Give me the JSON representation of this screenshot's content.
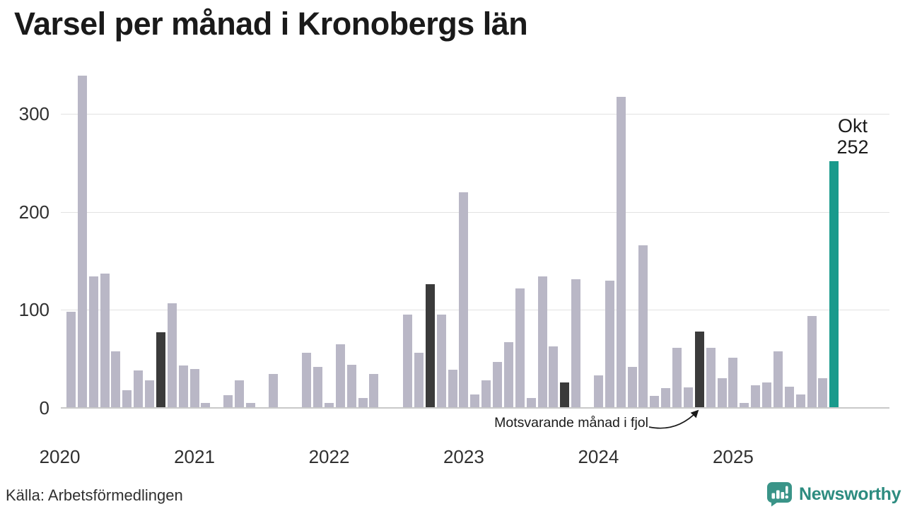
{
  "title": "Varsel per månad i Kronobergs län",
  "source": "Källa: Arbetsförmedlingen",
  "brand": {
    "name": "Newsworthy"
  },
  "annotation": {
    "text": "Motsvarande månad i fjol"
  },
  "colors": {
    "bar": "#b9b7c6",
    "bar_dark": "#3b3b3b",
    "bar_highlight": "#199a8c",
    "grid": "#e2e2e2",
    "axis": "#c9c9c9",
    "text": "#1a1a1a",
    "label": "#303030",
    "brand": "#2d8c80",
    "brand_icon": "#3a9488"
  },
  "chart_data": {
    "type": "bar",
    "title": "Varsel per månad i Kronobergs län",
    "grid": "horizontal",
    "x_tick_labels": [
      "2020",
      "2021",
      "2022",
      "2023",
      "2024",
      "2025"
    ],
    "y_ticks": [
      0,
      100,
      200,
      300
    ],
    "ylim": [
      0,
      355
    ],
    "years": [
      "2020",
      "2021",
      "2022",
      "2023",
      "2024",
      "2025"
    ],
    "values_by_year": {
      "2020": [
        0,
        98,
        339,
        134,
        137,
        58,
        18,
        38,
        28,
        77,
        107,
        43
      ],
      "2021": [
        40,
        5,
        0,
        13,
        28,
        5,
        0,
        35,
        0,
        0,
        56,
        42
      ],
      "2022": [
        5,
        65,
        44,
        10,
        35,
        0,
        0,
        95,
        56,
        126,
        95,
        39
      ],
      "2023": [
        220,
        14,
        28,
        47,
        67,
        122,
        10,
        134,
        63,
        26,
        131,
        0
      ],
      "2024": [
        33,
        130,
        317,
        42,
        166,
        12,
        20,
        61,
        21,
        78,
        61,
        30
      ],
      "2025": [
        51,
        5,
        23,
        26,
        58,
        22,
        14,
        94,
        30,
        252
      ]
    },
    "dark_month": 10,
    "highlight": {
      "month_label": "Okt",
      "value": 252,
      "value_text": "252"
    }
  }
}
